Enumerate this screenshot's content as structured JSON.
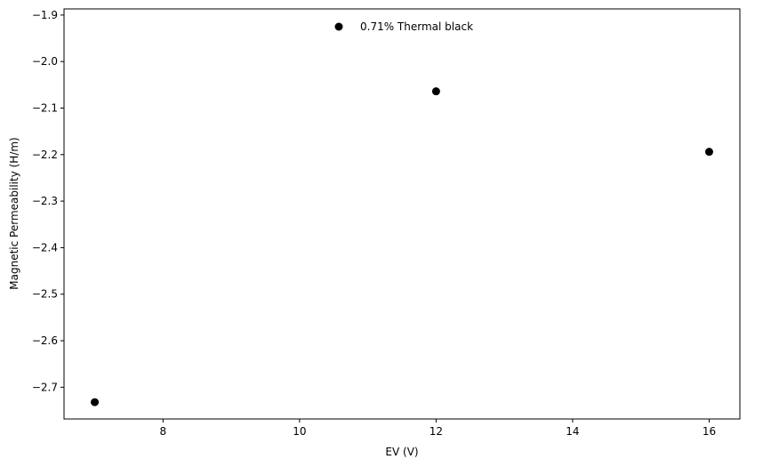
{
  "chart_data": {
    "type": "scatter",
    "title": "",
    "xlabel": "EV (V)",
    "ylabel": "Magnetic Permeability (H/m)",
    "xlim": [
      6.55,
      16.45
    ],
    "ylim": [
      -2.7682,
      -1.8868
    ],
    "x_ticks": [
      8,
      10,
      12,
      14,
      16
    ],
    "y_ticks": [
      -2.7,
      -2.6,
      -2.5,
      -2.4,
      -2.3,
      -2.2,
      -2.1,
      -2.0,
      -1.9
    ],
    "x_tick_labels": [
      "8",
      "10",
      "12",
      "14",
      "16"
    ],
    "y_tick_labels": [
      "−2.7",
      "−2.6",
      "−2.5",
      "−2.4",
      "−2.3",
      "−2.2",
      "−2.1",
      "−2.0",
      "−1.9"
    ],
    "grid": false,
    "legend": "top-center",
    "series": [
      {
        "name": "0.71% Thermal black",
        "color": "#000000",
        "marker": "circle",
        "x": [
          7,
          12,
          16
        ],
        "y": [
          -2.732,
          -2.064,
          -2.194
        ]
      }
    ]
  }
}
